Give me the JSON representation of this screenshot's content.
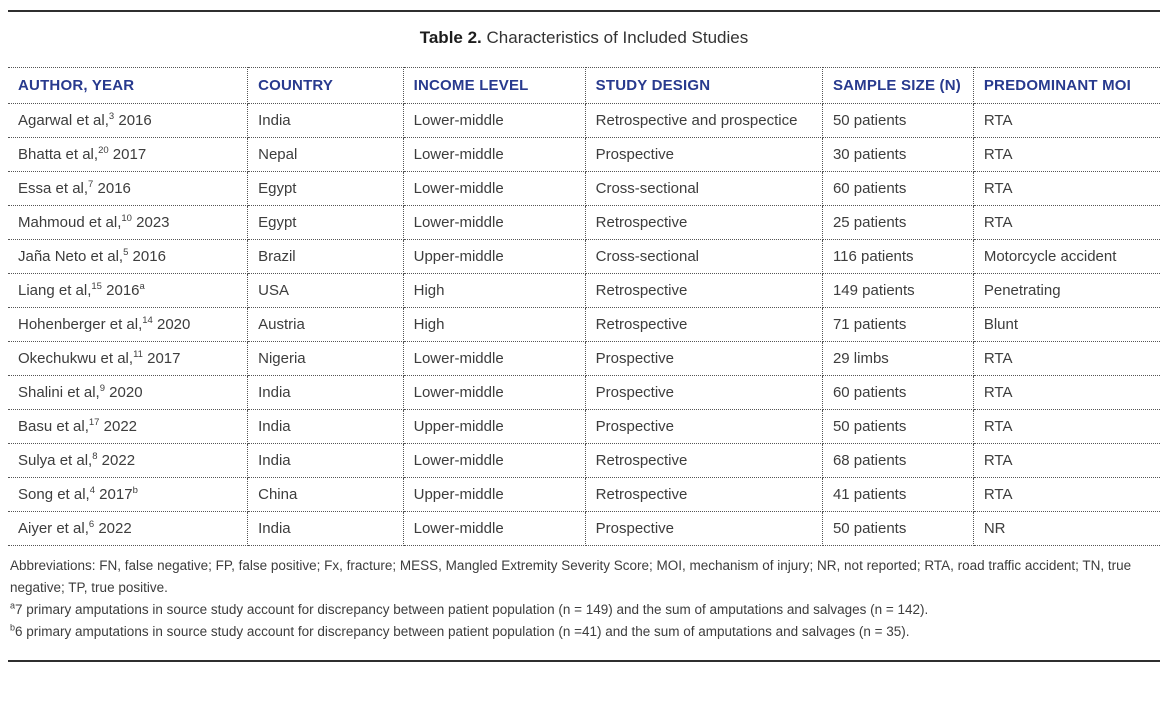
{
  "caption": {
    "label": "Table 2.",
    "title": " Characteristics of Included Studies"
  },
  "colors": {
    "header_blue": "#283A8E",
    "body_text": "#3D3D3D",
    "rule_dark": "#2F2F2F",
    "grid_dotted": "#555555"
  },
  "table": {
    "headers": [
      "AUTHOR, YEAR",
      "COUNTRY",
      "INCOME LEVEL",
      "STUDY DESIGN",
      "SAMPLE SIZE (N)",
      "PREDOMINANT MOI"
    ],
    "rows": [
      {
        "author": {
          "pre": "Agarwal et al,",
          "ref": "3",
          "post": " 2016",
          "mark": ""
        },
        "country": "India",
        "income": "Lower-middle",
        "design": "Retrospective and prospectice",
        "sample": "50 patients",
        "moi": "RTA"
      },
      {
        "author": {
          "pre": "Bhatta et al,",
          "ref": "20",
          "post": " 2017",
          "mark": ""
        },
        "country": "Nepal",
        "income": "Lower-middle",
        "design": "Prospective",
        "sample": "30 patients",
        "moi": "RTA"
      },
      {
        "author": {
          "pre": "Essa et al,",
          "ref": "7",
          "post": " 2016",
          "mark": ""
        },
        "country": "Egypt",
        "income": "Lower-middle",
        "design": "Cross-sectional",
        "sample": "60 patients",
        "moi": "RTA"
      },
      {
        "author": {
          "pre": "Mahmoud et al,",
          "ref": "10",
          "post": " 2023",
          "mark": ""
        },
        "country": "Egypt",
        "income": "Lower-middle",
        "design": "Retrospective",
        "sample": "25 patients",
        "moi": "RTA"
      },
      {
        "author": {
          "pre": "Jaña Neto et al,",
          "ref": "5",
          "post": " 2016",
          "mark": ""
        },
        "country": "Brazil",
        "income": "Upper-middle",
        "design": "Cross-sectional",
        "sample": "116 patients",
        "moi": "Motorcycle accident"
      },
      {
        "author": {
          "pre": "Liang et al,",
          "ref": "15",
          "post": " 2016",
          "mark": "a"
        },
        "country": "USA",
        "income": "High",
        "design": "Retrospective",
        "sample": "149 patients",
        "moi": "Penetrating"
      },
      {
        "author": {
          "pre": "Hohenberger et al,",
          "ref": "14",
          "post": " 2020",
          "mark": ""
        },
        "country": "Austria",
        "income": "High",
        "design": "Retrospective",
        "sample": "71 patients",
        "moi": "Blunt"
      },
      {
        "author": {
          "pre": "Okechukwu et al,",
          "ref": "11",
          "post": " 2017",
          "mark": ""
        },
        "country": "Nigeria",
        "income": "Lower-middle",
        "design": "Prospective",
        "sample": "29 limbs",
        "moi": "RTA"
      },
      {
        "author": {
          "pre": "Shalini et al,",
          "ref": "9",
          "post": " 2020",
          "mark": ""
        },
        "country": "India",
        "income": "Lower-middle",
        "design": "Prospective",
        "sample": "60 patients",
        "moi": "RTA"
      },
      {
        "author": {
          "pre": "Basu et al,",
          "ref": "17",
          "post": " 2022",
          "mark": ""
        },
        "country": "India",
        "income": "Upper-middle",
        "design": "Prospective",
        "sample": "50 patients",
        "moi": "RTA"
      },
      {
        "author": {
          "pre": "Sulya et al,",
          "ref": "8",
          "post": " 2022",
          "mark": ""
        },
        "country": "India",
        "income": "Lower-middle",
        "design": "Retrospective",
        "sample": "68 patients",
        "moi": "RTA"
      },
      {
        "author": {
          "pre": "Song et al,",
          "ref": "4",
          "post": " 2017",
          "mark": "b"
        },
        "country": "China",
        "income": "Upper-middle",
        "design": "Retrospective",
        "sample": "41 patients",
        "moi": "RTA"
      },
      {
        "author": {
          "pre": "Aiyer et al,",
          "ref": "6",
          "post": " 2022",
          "mark": ""
        },
        "country": "India",
        "income": "Lower-middle",
        "design": "Prospective",
        "sample": "50 patients",
        "moi": "NR"
      }
    ]
  },
  "footnotes": {
    "abbreviations": "Abbreviations: FN, false negative; FP, false positive; Fx, fracture; MESS, Mangled Extremity Severity Score; MOI, mechanism of injury; NR, not reported; RTA, road traffic accident; TN, true negative; TP, true positive.",
    "a": {
      "mark": "a",
      "text": "7 primary amputations in source study account for discrepancy between patient population (n = 149) and the sum of amputations and salvages (n = 142)."
    },
    "b": {
      "mark": "b",
      "text": "6 primary amputations in source study account for discrepancy between patient population (n =41) and the sum of amputations and salvages (n = 35)."
    }
  }
}
